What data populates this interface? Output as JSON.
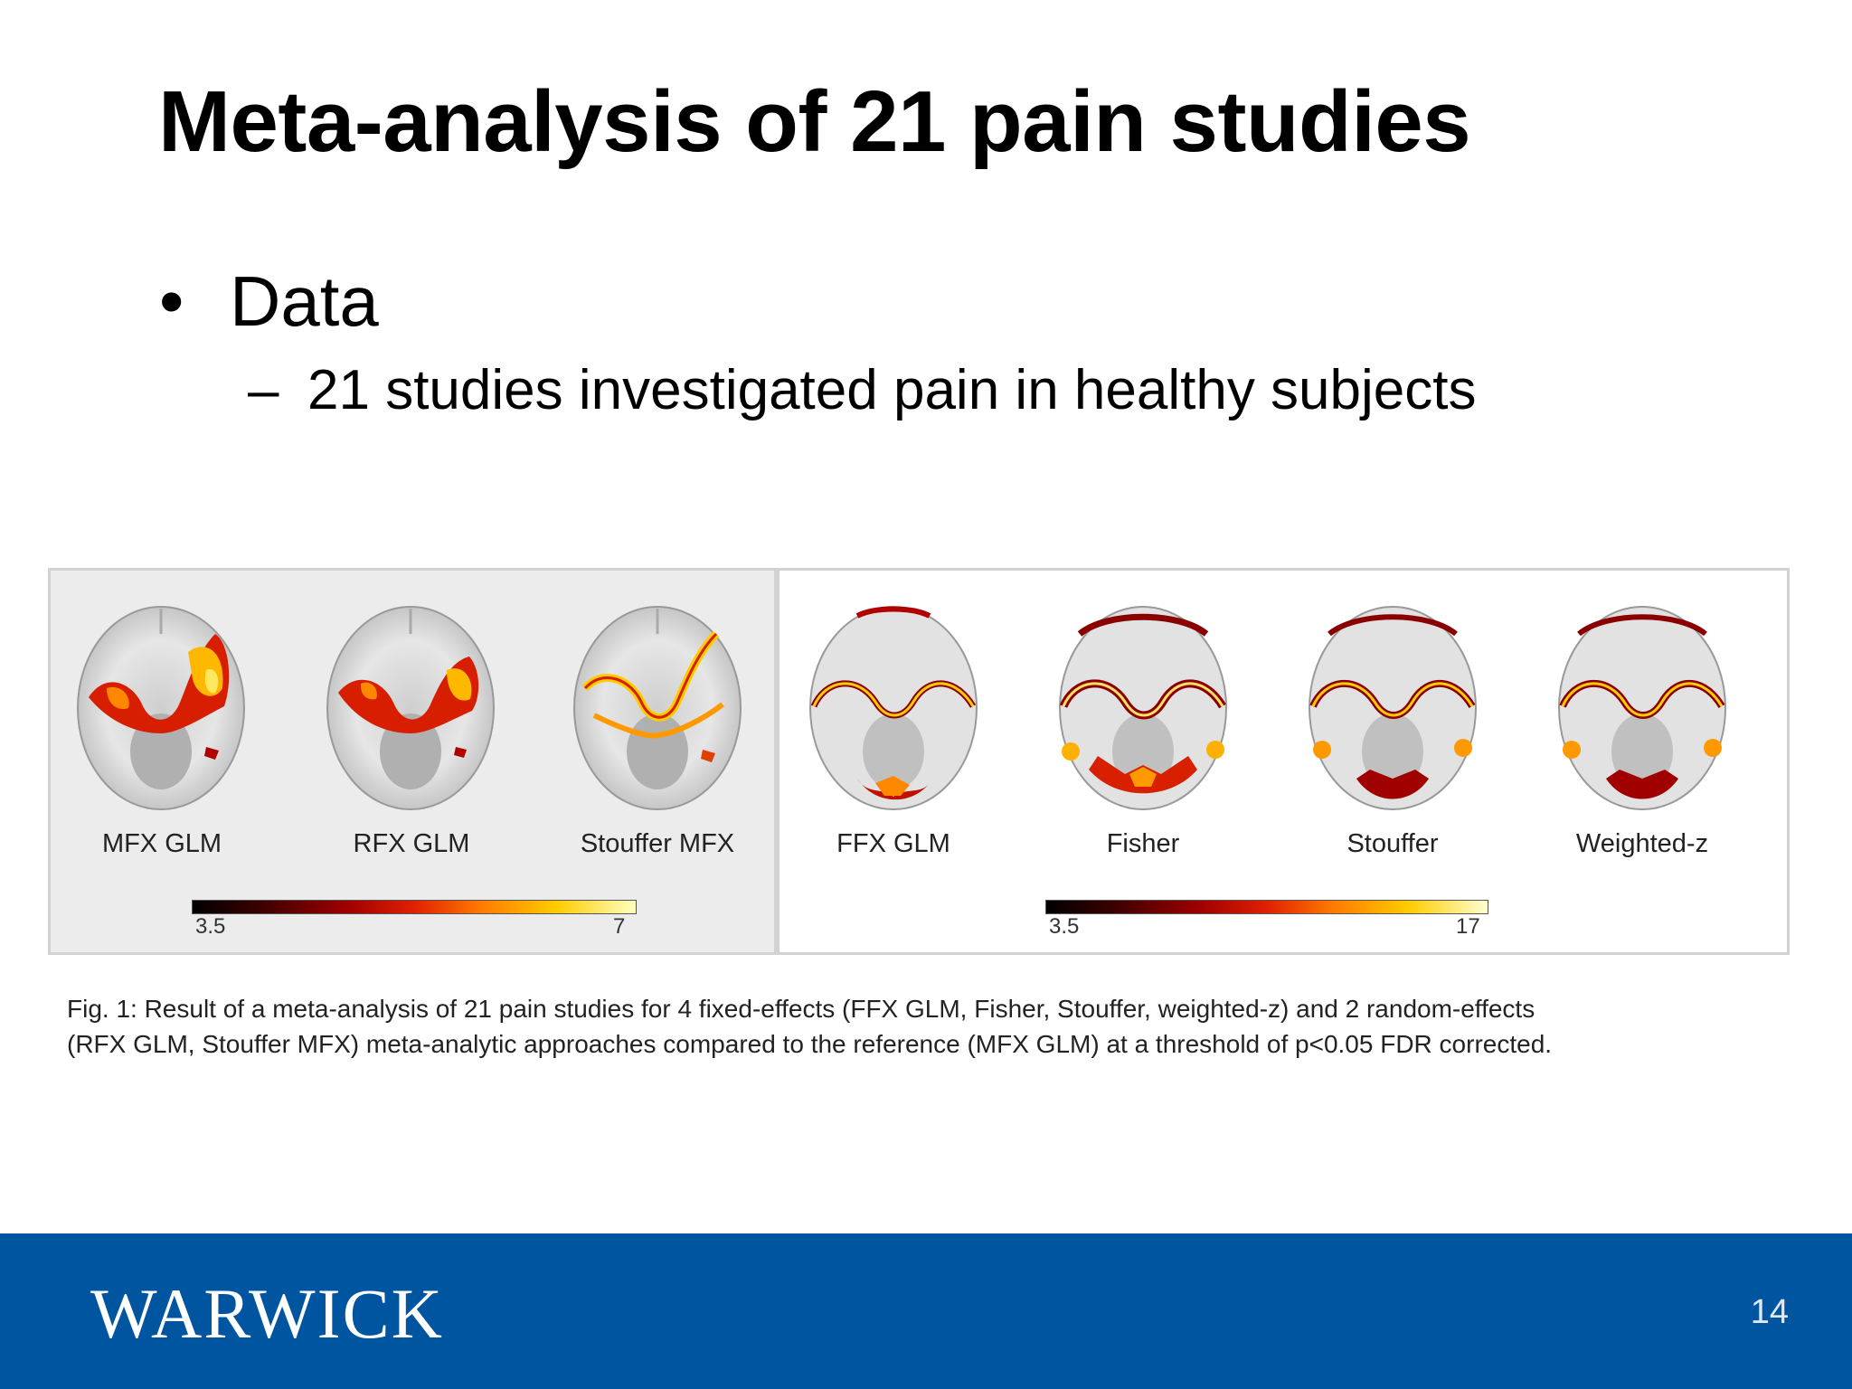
{
  "slide": {
    "title": "Meta-analysis of 21 pain studies",
    "bullet": "Data",
    "sub_bullet": "21 studies investigated pain in healthy subjects",
    "bullet_marker": "•",
    "sub_marker": "–"
  },
  "figure": {
    "left_panel": {
      "labels": [
        "MFX GLM",
        "RFX GLM",
        "Stouffer MFX"
      ],
      "colorbar": {
        "min": "3.5",
        "max": "7"
      }
    },
    "right_panel": {
      "labels": [
        "FFX GLM",
        "Fisher",
        "Stouffer",
        "Weighted-z"
      ],
      "colorbar": {
        "min": "3.5",
        "max": "17"
      }
    },
    "caption_line1": "Fig. 1: Result of a meta-analysis of 21 pain studies for 4 fixed-effects (FFX GLM, Fisher, Stouffer, weighted-z) and 2 random-effects",
    "caption_line2": "(RFX GLM, Stouffer MFX) meta-analytic approaches compared to the reference (MFX GLM) at a threshold of p<0.05 FDR corrected."
  },
  "footer": {
    "logo": "WARWICK",
    "page_number": "14",
    "bar_color": "#0055a0"
  }
}
